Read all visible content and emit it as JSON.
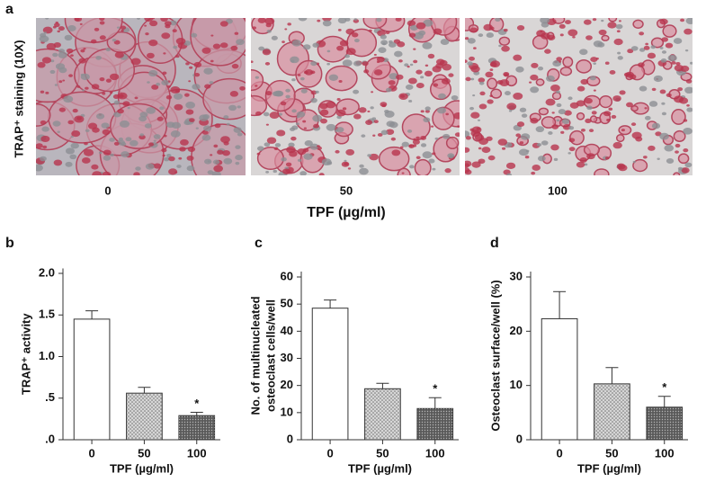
{
  "panel_a": {
    "label": "a",
    "ylabel": "TRAP⁺ staining (10X)",
    "images": [
      "0",
      "50",
      "100"
    ],
    "xlabel": "TPF (µg/ml)"
  },
  "chart_data": [
    {
      "type": "bar",
      "panel": "b",
      "ylabel": [
        "TRAP⁺ activity"
      ],
      "xlabel": "TPF (µg/ml)",
      "categories": [
        "0",
        "50",
        "100"
      ],
      "values": [
        1.45,
        0.56,
        0.29
      ],
      "errors": [
        0.1,
        0.07,
        0.04
      ],
      "colors": [
        "#ffffff",
        "#d6d6d6",
        "#5a5a5a"
      ],
      "annotation": "*",
      "ylim": [
        0,
        2.06
      ],
      "yticks": [
        {
          "value": 0,
          "label": ".0"
        },
        {
          "value": 0.5,
          "label": ".5"
        },
        {
          "value": 1,
          "label": "1.0"
        },
        {
          "value": 1.5,
          "label": "1.5"
        },
        {
          "value": 2,
          "label": "2.0"
        }
      ]
    },
    {
      "type": "bar",
      "panel": "c",
      "ylabel": [
        "No. of multinucleated",
        "osteoclast cells/well"
      ],
      "xlabel": "TPF (µg/ml)",
      "categories": [
        "0",
        "50",
        "100"
      ],
      "values": [
        48.5,
        18.8,
        11.5
      ],
      "errors": [
        3,
        2,
        4
      ],
      "colors": [
        "#ffffff",
        "#d6d6d6",
        "#5a5a5a"
      ],
      "annotation": "*",
      "ylim": [
        0,
        62
      ],
      "yticks": [
        0,
        10,
        20,
        30,
        40,
        50,
        60
      ]
    },
    {
      "type": "bar",
      "panel": "d",
      "ylabel": [
        "Osteoclast surface/well (%)"
      ],
      "xlabel": "TPF (µg/ml)",
      "categories": [
        "0",
        "50",
        "100"
      ],
      "values": [
        22.3,
        10.3,
        6
      ],
      "errors": [
        5,
        3,
        2
      ],
      "colors": [
        "#ffffff",
        "#d6d6d6",
        "#5a5a5a"
      ],
      "annotation": "*",
      "ylim": [
        0,
        31
      ],
      "yticks": [
        0,
        10,
        20,
        30
      ]
    }
  ]
}
